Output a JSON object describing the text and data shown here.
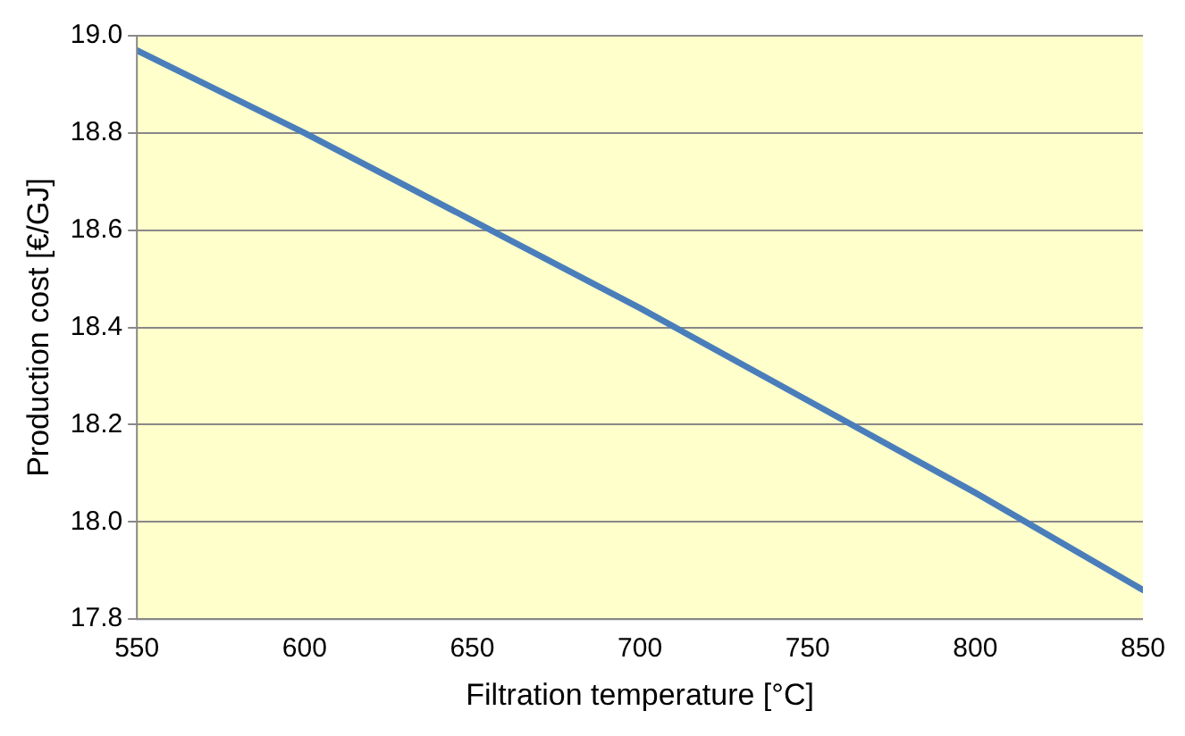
{
  "chart_data": {
    "type": "line",
    "xlabel": "Filtration temperature [°C]",
    "ylabel": "Production cost [€/GJ]",
    "x": [
      550,
      600,
      650,
      700,
      750,
      800,
      850
    ],
    "series": [
      {
        "color": "#4a7ebb",
        "values": [
          18.97,
          18.8,
          18.62,
          18.44,
          18.25,
          18.06,
          17.86
        ]
      }
    ],
    "xlim": [
      550,
      850
    ],
    "xticks": [
      550,
      600,
      650,
      700,
      750,
      800,
      850
    ],
    "ylim": [
      17.8,
      19.0
    ],
    "yticks": [
      17.8,
      {
        "value": 18,
        "label": "18.0"
      },
      18.2,
      18.4,
      18.6,
      18.8,
      {
        "value": 19,
        "label": "19.0"
      }
    ],
    "grid": "y",
    "legend": false,
    "marker": "none",
    "line_style": "solid"
  }
}
